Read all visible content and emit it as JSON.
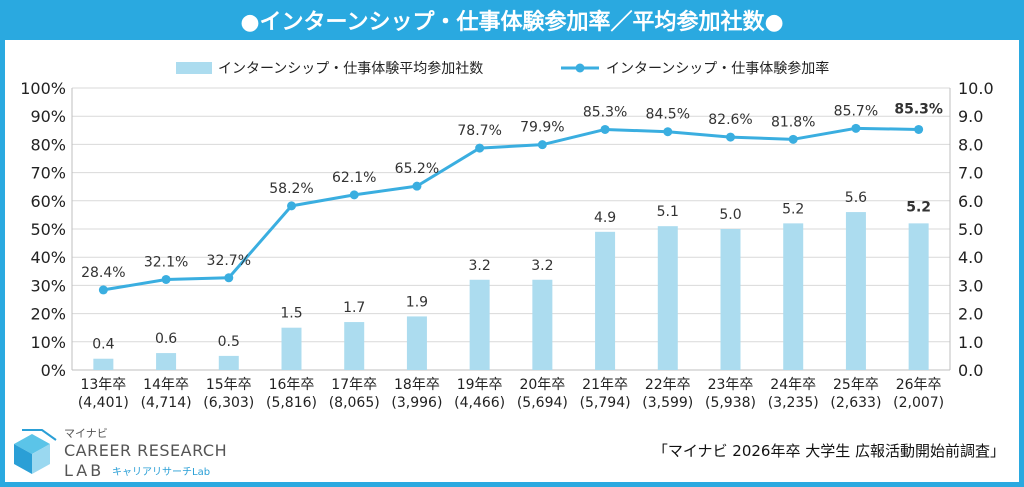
{
  "header": {
    "title": "●インターンシップ・仕事体験参加率／平均参加社数●"
  },
  "logo": {
    "brand": "マイナビ",
    "line1": "CAREER RESEARCH",
    "line2": "LAB",
    "sub": "キャリアリサーチLab"
  },
  "source": "「マイナビ 2026年卒 大学生 広報活動開始前調査」",
  "colors": {
    "bar": "#acdcef",
    "line": "#3aaee0",
    "highlight": "#cc0000",
    "frame": "#2aa9e0"
  },
  "chart_data": {
    "type": "bar",
    "categories": [
      "13年卒",
      "14年卒",
      "15年卒",
      "16年卒",
      "17年卒",
      "18年卒",
      "19年卒",
      "20年卒",
      "21年卒",
      "22年卒",
      "23年卒",
      "24年卒",
      "25年卒",
      "26年卒"
    ],
    "sample_sizes": [
      "(4,401)",
      "(4,714)",
      "(6,303)",
      "(5,816)",
      "(8,065)",
      "(3,996)",
      "(4,466)",
      "(5,694)",
      "(5,794)",
      "(3,599)",
      "(5,938)",
      "(3,235)",
      "(2,633)",
      "(2,007)"
    ],
    "series": [
      {
        "name": "インターンシップ・仕事体験平均参加社数",
        "type": "bar",
        "axis": "right",
        "values": [
          0.4,
          0.6,
          0.5,
          1.5,
          1.7,
          1.9,
          3.2,
          3.2,
          4.9,
          5.1,
          5.0,
          5.2,
          5.6,
          5.2
        ],
        "labels": [
          "0.4",
          "0.6",
          "0.5",
          "1.5",
          "1.7",
          "1.9",
          "3.2",
          "3.2",
          "4.9",
          "5.1",
          "5.0",
          "5.2",
          "5.6",
          "5.2"
        ]
      },
      {
        "name": "インターンシップ・仕事体験参加率",
        "type": "line",
        "axis": "left",
        "values": [
          28.4,
          32.1,
          32.7,
          58.2,
          62.1,
          65.2,
          78.7,
          79.9,
          85.3,
          84.5,
          82.6,
          81.8,
          85.7,
          85.3
        ],
        "labels": [
          "28.4%",
          "32.1%",
          "32.7%",
          "58.2%",
          "62.1%",
          "65.2%",
          "78.7%",
          "79.9%",
          "85.3%",
          "84.5%",
          "82.6%",
          "81.8%",
          "85.7%",
          "85.3%"
        ]
      }
    ],
    "y_left": {
      "ylim": [
        0,
        100
      ],
      "ticks": [
        "0%",
        "10%",
        "20%",
        "30%",
        "40%",
        "50%",
        "60%",
        "70%",
        "80%",
        "90%",
        "100%"
      ]
    },
    "y_right": {
      "ylim": [
        0,
        10
      ],
      "ticks": [
        "0.0",
        "1.0",
        "2.0",
        "3.0",
        "4.0",
        "5.0",
        "6.0",
        "7.0",
        "8.0",
        "9.0",
        "10.0"
      ]
    },
    "highlight_last": true,
    "legend_position": "top-center",
    "grid": true
  }
}
